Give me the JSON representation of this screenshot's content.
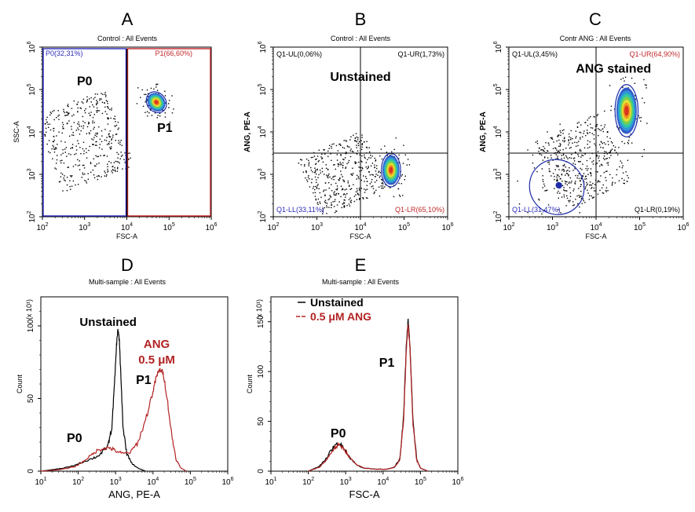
{
  "chart_data": [
    {
      "letter": "A",
      "type": "scatter",
      "title": "Control : All Events",
      "xlabel": "FSC-A",
      "ylabel": "SSC-A",
      "xscale": "log",
      "yscale": "log",
      "xlim_exp": [
        2,
        6
      ],
      "ylim_exp": [
        2,
        6
      ],
      "gates": [
        {
          "name": "P0",
          "label": "P0(32,31%)",
          "color": "#2b2bb8",
          "x_exp": [
            2,
            4
          ],
          "y_exp": [
            2,
            6
          ]
        },
        {
          "name": "P1",
          "label": "P1(66,60%)",
          "color": "#c0262a",
          "x_exp": [
            4,
            6
          ],
          "y_exp": [
            2,
            6
          ]
        }
      ],
      "region_labels": [
        {
          "text": "P0",
          "x_exp": 3.0,
          "y_exp": 5.1
        },
        {
          "text": "P1",
          "x_exp": 4.9,
          "y_exp": 4.0
        }
      ],
      "populations": [
        {
          "x_exp": 4.7,
          "y_exp": 4.7,
          "sx": 0.1,
          "sy": 0.12,
          "rot": 40
        },
        {
          "x_exp": 3.0,
          "y_exp": 3.8,
          "sx": 0.6,
          "sy": 0.65,
          "rot": 20,
          "scatter_only": true
        }
      ]
    },
    {
      "letter": "B",
      "type": "scatter",
      "title": "Control : All Events",
      "xlabel": "FSC-A",
      "ylabel": "ANG, PE-A",
      "xscale": "log",
      "yscale": "log",
      "xlim_exp": [
        2,
        6
      ],
      "ylim_exp": [
        2,
        6
      ],
      "quadrant_x_exp": 4,
      "quadrant_y_exp": 3.5,
      "quadrants": [
        {
          "label": "Q1-UL(0,06%)",
          "pos": "top-left",
          "color": "#000000"
        },
        {
          "label": "Q1-UR(1,73%)",
          "pos": "top-right",
          "color": "#000000"
        },
        {
          "label": "Q1-LL(33,11%)",
          "pos": "bottom-left",
          "color": "#2b2bb8"
        },
        {
          "label": "Q1-LR(65,10%)",
          "pos": "bottom-right",
          "color": "#c0262a"
        }
      ],
      "annotation": {
        "text": "Unstained",
        "x_exp": 4.0,
        "y_exp": 5.2
      },
      "populations": [
        {
          "x_exp": 4.7,
          "y_exp": 3.1,
          "sx": 0.1,
          "sy": 0.18,
          "rot": 0
        },
        {
          "x_exp": 3.6,
          "y_exp": 3.0,
          "sx": 0.55,
          "sy": 0.5,
          "rot": 25,
          "scatter_only": true
        }
      ]
    },
    {
      "letter": "C",
      "type": "scatter",
      "title": "Contr ANG : All Events",
      "xlabel": "FSC-A",
      "ylabel": "ANG, PE-A",
      "xscale": "log",
      "yscale": "log",
      "xlim_exp": [
        2,
        6
      ],
      "ylim_exp": [
        2,
        6
      ],
      "quadrant_x_exp": 4,
      "quadrant_y_exp": 3.5,
      "quadrants": [
        {
          "label": "Q1-UL(3,45%)",
          "pos": "top-left",
          "color": "#000000"
        },
        {
          "label": "Q1-UR(64,90%)",
          "pos": "top-right",
          "color": "#c0262a"
        },
        {
          "label": "Q1-LL(31,47%)",
          "pos": "bottom-left",
          "color": "#2b2bb8"
        },
        {
          "label": "Q1-LR(0,19%)",
          "pos": "bottom-right",
          "color": "#000000"
        }
      ],
      "annotation": {
        "text": "ANG stained",
        "x_exp": 4.4,
        "y_exp": 5.4
      },
      "populations": [
        {
          "x_exp": 4.7,
          "y_exp": 4.5,
          "sx": 0.12,
          "sy": 0.28,
          "rot": 0
        },
        {
          "x_exp": 3.1,
          "y_exp": 2.7,
          "sx": 0.28,
          "sy": 0.3,
          "rot": 40,
          "sparse_contour": true
        },
        {
          "x_exp": 3.7,
          "y_exp": 3.3,
          "sx": 0.55,
          "sy": 0.6,
          "rot": 25,
          "scatter_only": true
        }
      ]
    },
    {
      "letter": "D",
      "type": "line",
      "title": "Multi-sample : All Events",
      "xlabel": "ANG, PE-A",
      "ylabel": "Count",
      "y_multiplier": "(x 10¹)",
      "xscale": "log",
      "xlim_exp": [
        1,
        6
      ],
      "ylim": [
        0,
        120
      ],
      "yticks": [
        0,
        50,
        100
      ],
      "annotations": [
        {
          "text": "Unstained",
          "color": "#000000",
          "x_exp": 2.8,
          "y": 100
        },
        {
          "text": "ANG",
          "color": "#b22222",
          "x_exp": 4.1,
          "y": 85
        },
        {
          "text": "0.5 μM",
          "color": "#b22222",
          "x_exp": 4.1,
          "y": 74
        },
        {
          "text": "P1",
          "color": "#000000",
          "x_exp": 3.75,
          "y": 60
        },
        {
          "text": "P0",
          "color": "#000000",
          "x_exp": 1.9,
          "y": 20
        }
      ],
      "series": [
        {
          "color": "#000000",
          "points": [
            [
              1.0,
              0
            ],
            [
              1.3,
              1
            ],
            [
              1.6,
              2
            ],
            [
              1.9,
              4
            ],
            [
              2.1,
              6
            ],
            [
              2.3,
              8
            ],
            [
              2.5,
              10
            ],
            [
              2.65,
              13
            ],
            [
              2.8,
              18
            ],
            [
              2.9,
              30
            ],
            [
              2.97,
              60
            ],
            [
              3.02,
              85
            ],
            [
              3.06,
              98
            ],
            [
              3.1,
              90
            ],
            [
              3.15,
              60
            ],
            [
              3.2,
              30
            ],
            [
              3.3,
              12
            ],
            [
              3.45,
              5
            ],
            [
              3.6,
              2
            ],
            [
              3.8,
              0
            ]
          ]
        },
        {
          "color": "#b22222",
          "points": [
            [
              1.0,
              0
            ],
            [
              1.5,
              1
            ],
            [
              1.9,
              3
            ],
            [
              2.1,
              6
            ],
            [
              2.3,
              10
            ],
            [
              2.5,
              14
            ],
            [
              2.7,
              16
            ],
            [
              2.85,
              16
            ],
            [
              3.0,
              14
            ],
            [
              3.2,
              12
            ],
            [
              3.4,
              13
            ],
            [
              3.6,
              20
            ],
            [
              3.8,
              35
            ],
            [
              4.0,
              55
            ],
            [
              4.1,
              66
            ],
            [
              4.2,
              70
            ],
            [
              4.28,
              67
            ],
            [
              4.38,
              50
            ],
            [
              4.5,
              25
            ],
            [
              4.62,
              8
            ],
            [
              4.75,
              2
            ],
            [
              4.9,
              0
            ]
          ]
        }
      ]
    },
    {
      "letter": "E",
      "type": "line",
      "title": "Multi-sample : All Events",
      "xlabel": "FSC-A",
      "ylabel": "Count",
      "y_multiplier": "(x 10¹)",
      "xscale": "log",
      "xlim_exp": [
        1,
        6
      ],
      "ylim": [
        0,
        175
      ],
      "yticks": [
        0,
        50,
        100,
        150
      ],
      "legend": {
        "position": "top-left",
        "entries": [
          {
            "label": "Unstained",
            "color": "#000000"
          },
          {
            "label": "0.5 μM ANG",
            "color": "#b22222"
          }
        ]
      },
      "annotations": [
        {
          "text": "P1",
          "color": "#000000",
          "x_exp": 4.1,
          "y": 105
        },
        {
          "text": "P0",
          "color": "#000000",
          "x_exp": 2.8,
          "y": 34
        }
      ],
      "series": [
        {
          "color": "#000000",
          "points": [
            [
              2.0,
              0
            ],
            [
              2.3,
              5
            ],
            [
              2.5,
              14
            ],
            [
              2.65,
              23
            ],
            [
              2.8,
              28
            ],
            [
              2.95,
              24
            ],
            [
              3.1,
              14
            ],
            [
              3.3,
              6
            ],
            [
              3.5,
              3
            ],
            [
              3.8,
              2
            ],
            [
              4.1,
              2
            ],
            [
              4.3,
              4
            ],
            [
              4.45,
              12
            ],
            [
              4.55,
              55
            ],
            [
              4.62,
              125
            ],
            [
              4.67,
              152
            ],
            [
              4.72,
              125
            ],
            [
              4.8,
              50
            ],
            [
              4.9,
              12
            ],
            [
              5.0,
              3
            ],
            [
              5.2,
              0
            ]
          ]
        },
        {
          "color": "#b22222",
          "points": [
            [
              2.0,
              0
            ],
            [
              2.3,
              4
            ],
            [
              2.5,
              12
            ],
            [
              2.65,
              21
            ],
            [
              2.8,
              26
            ],
            [
              2.95,
              23
            ],
            [
              3.1,
              14
            ],
            [
              3.3,
              6
            ],
            [
              3.5,
              3
            ],
            [
              3.8,
              2
            ],
            [
              4.1,
              2
            ],
            [
              4.3,
              4
            ],
            [
              4.45,
              11
            ],
            [
              4.55,
              52
            ],
            [
              4.62,
              120
            ],
            [
              4.67,
              148
            ],
            [
              4.72,
              122
            ],
            [
              4.8,
              48
            ],
            [
              4.9,
              11
            ],
            [
              5.0,
              3
            ],
            [
              5.2,
              0
            ]
          ]
        }
      ]
    }
  ]
}
